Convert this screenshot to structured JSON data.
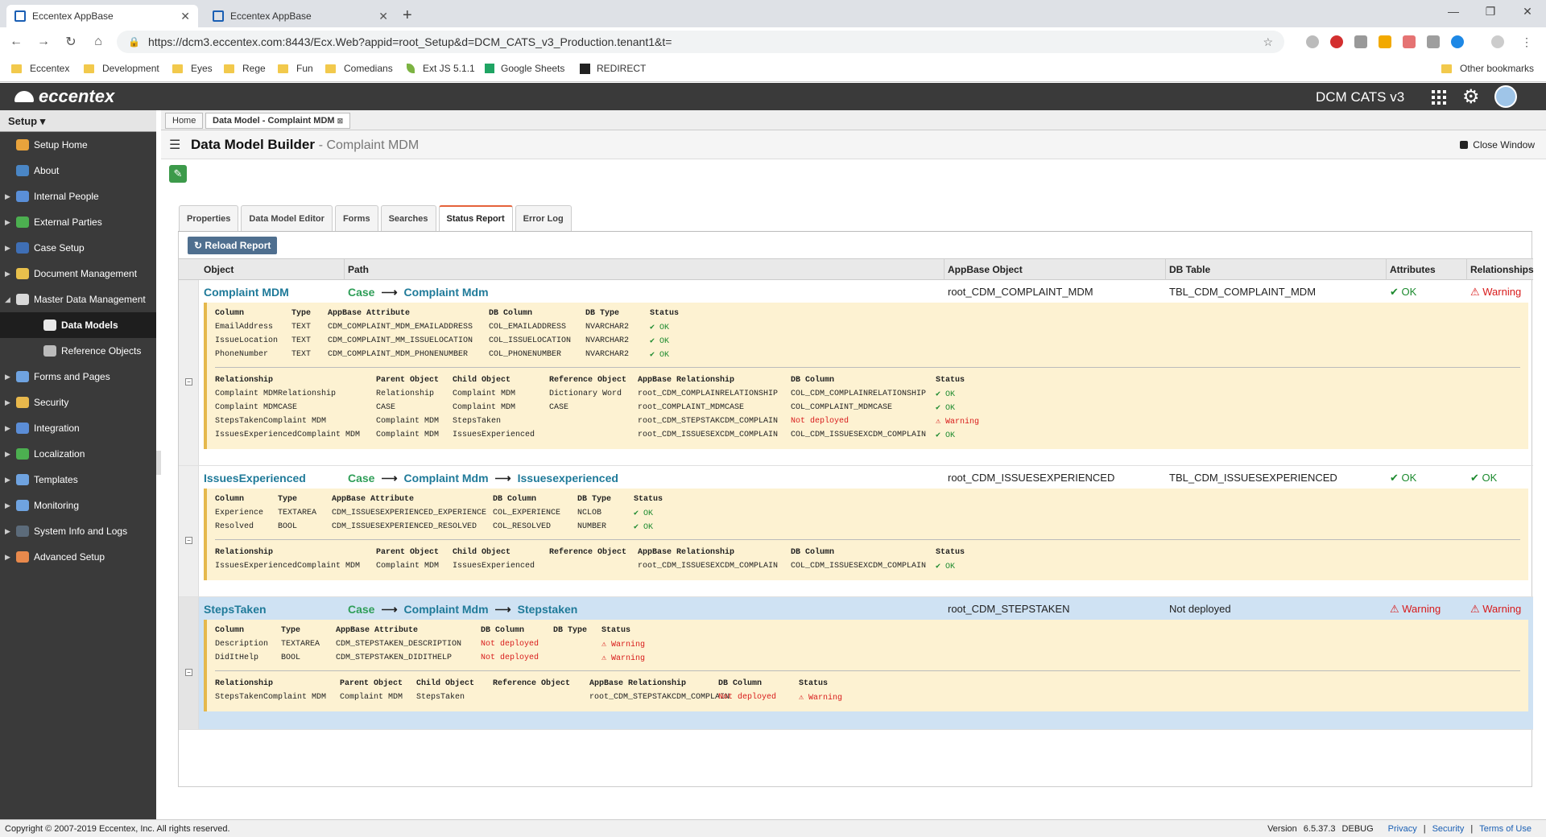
{
  "browser": {
    "tabs": [
      {
        "title": "Eccentex AppBase"
      },
      {
        "title": "Eccentex AppBase"
      }
    ],
    "url": "https://dcm3.eccentex.com:8443/Ecx.Web?appid=root_Setup&d=DCM_CATS_v3_Production.tenant1&t=",
    "bookmarks": [
      "Eccentex",
      "Development",
      "Eyes",
      "Rege",
      "Fun",
      "Comedians",
      "Ext JS 5.1.1",
      "Google Sheets",
      "REDIRECT"
    ],
    "other_bookmarks": "Other bookmarks"
  },
  "app": {
    "logo": "eccentex",
    "tenant": "DCM CATS v3"
  },
  "sidebar": {
    "header": "Setup",
    "items": [
      {
        "label": "Setup Home",
        "color": "#e8a33c"
      },
      {
        "label": "About",
        "color": "#4a86c5"
      },
      {
        "label": "Internal People",
        "color": "#5a8fd8"
      },
      {
        "label": "External Parties",
        "color": "#4caf50"
      },
      {
        "label": "Case Setup",
        "color": "#3f6fb5"
      },
      {
        "label": "Document Management",
        "color": "#e8c04c"
      },
      {
        "label": "Master Data Management",
        "color": "#d9d9d9"
      },
      {
        "label": "Data Models",
        "color": "#eaeaea"
      },
      {
        "label": "Reference Objects",
        "color": "#bbbbbb"
      },
      {
        "label": "Forms and Pages",
        "color": "#6fa3e0"
      },
      {
        "label": "Security",
        "color": "#e8b84c"
      },
      {
        "label": "Integration",
        "color": "#5b8dd6"
      },
      {
        "label": "Localization",
        "color": "#4caf50"
      },
      {
        "label": "Templates",
        "color": "#6fa3e0"
      },
      {
        "label": "Monitoring",
        "color": "#6fa3e0"
      },
      {
        "label": "System Info and Logs",
        "color": "#5c6b7a"
      },
      {
        "label": "Advanced Setup",
        "color": "#e8894c"
      }
    ]
  },
  "breadcrumbs": [
    "Home",
    "Data Model - Complaint MDM"
  ],
  "page": {
    "title": "Data Model Builder",
    "subtitle": "- Complaint MDM",
    "close_label": "Close Window"
  },
  "tabs": [
    "Properties",
    "Data Model Editor",
    "Forms",
    "Searches",
    "Status Report",
    "Error Log"
  ],
  "reload_label": "Reload Report",
  "grid": {
    "headers": [
      "Object",
      "Path",
      "AppBase Object",
      "DB Table",
      "Attributes",
      "Relationships"
    ],
    "groups": [
      {
        "object": "Complaint MDM",
        "path": [
          "Case",
          "Complaint Mdm"
        ],
        "appbase_object": "root_CDM_COMPLAINT_MDM",
        "db_table": "TBL_CDM_COMPLAINT_MDM",
        "attributes": "OK",
        "relationships": "Warning",
        "attr_headers": [
          "Column",
          "Type",
          "AppBase Attribute",
          "DB Column",
          "DB Type",
          "Status"
        ],
        "attr_rows": [
          [
            "EmailAddress",
            "TEXT",
            "CDM_COMPLAINT_MDM_EMAILADDRESS",
            "COL_EMAILADDRESS",
            "NVARCHAR2",
            "OK"
          ],
          [
            "IssueLocation",
            "TEXT",
            "CDM_COMPLAINT_MM_ISSUELOCATION",
            "COL_ISSUELOCATION",
            "NVARCHAR2",
            "OK"
          ],
          [
            "PhoneNumber",
            "TEXT",
            "CDM_COMPLAINT_MDM_PHONENUMBER",
            "COL_PHONENUMBER",
            "NVARCHAR2",
            "OK"
          ]
        ],
        "rel_headers": [
          "Relationship",
          "Parent Object",
          "Child Object",
          "Reference Object",
          "AppBase Relationship",
          "DB Column",
          "Status"
        ],
        "rel_rows": [
          [
            "Complaint MDMRelationship",
            "Relationship",
            "Complaint MDM",
            "Dictionary Word",
            "root_CDM_COMPLAINRELATIONSHIP",
            "COL_CDM_COMPLAINRELATIONSHIP",
            "OK"
          ],
          [
            "Complaint MDMCASE",
            "CASE",
            "Complaint MDM",
            "CASE",
            "root_COMPLAINT_MDMCASE",
            "COL_COMPLAINT_MDMCASE",
            "OK"
          ],
          [
            "StepsTakenComplaint MDM",
            "Complaint MDM",
            "StepsTaken",
            "",
            "root_CDM_STEPSTAKCDM_COMPLAIN",
            "Not deployed",
            "Warning"
          ],
          [
            "IssuesExperiencedComplaint MDM",
            "Complaint MDM",
            "IssuesExperienced",
            "",
            "root_CDM_ISSUESEXCDM_COMPLAIN",
            "COL_CDM_ISSUESEXCDM_COMPLAIN",
            "OK"
          ]
        ]
      },
      {
        "object": "IssuesExperienced",
        "path": [
          "Case",
          "Complaint Mdm",
          "Issuesexperienced"
        ],
        "appbase_object": "root_CDM_ISSUESEXPERIENCED",
        "db_table": "TBL_CDM_ISSUESEXPERIENCED",
        "attributes": "OK",
        "relationships": "OK",
        "attr_headers": [
          "Column",
          "Type",
          "AppBase Attribute",
          "DB Column",
          "DB Type",
          "Status"
        ],
        "attr_rows": [
          [
            "Experience",
            "TEXTAREA",
            "CDM_ISSUESEXPERIENCED_EXPERIENCE",
            "COL_EXPERIENCE",
            "NCLOB",
            "OK"
          ],
          [
            "Resolved",
            "BOOL",
            "CDM_ISSUESEXPERIENCED_RESOLVED",
            "COL_RESOLVED",
            "NUMBER",
            "OK"
          ]
        ],
        "rel_headers": [
          "Relationship",
          "Parent Object",
          "Child Object",
          "Reference Object",
          "AppBase Relationship",
          "DB Column",
          "Status"
        ],
        "rel_rows": [
          [
            "IssuesExperiencedComplaint MDM",
            "Complaint MDM",
            "IssuesExperienced",
            "",
            "root_CDM_ISSUESEXCDM_COMPLAIN",
            "COL_CDM_ISSUESEXCDM_COMPLAIN",
            "OK"
          ]
        ]
      },
      {
        "object": "StepsTaken",
        "path": [
          "Case",
          "Complaint Mdm",
          "Stepstaken"
        ],
        "appbase_object": "root_CDM_STEPSTAKEN",
        "db_table": "Not deployed",
        "attributes": "Warning",
        "relationships": "Warning",
        "attr_headers": [
          "Column",
          "Type",
          "AppBase Attribute",
          "DB Column",
          "DB Type",
          "Status"
        ],
        "attr_rows": [
          [
            "Description",
            "TEXTAREA",
            "CDM_STEPSTAKEN_DESCRIPTION",
            "Not deployed",
            "",
            "Warning"
          ],
          [
            "DidItHelp",
            "BOOL",
            "CDM_STEPSTAKEN_DIDITHELP",
            "Not deployed",
            "",
            "Warning"
          ]
        ],
        "rel_headers": [
          "Relationship",
          "Parent Object",
          "Child Object",
          "Reference Object",
          "AppBase Relationship",
          "DB Column",
          "Status"
        ],
        "rel_rows": [
          [
            "StepsTakenComplaint MDM",
            "Complaint MDM",
            "StepsTaken",
            "",
            "root_CDM_STEPSTAKCDM_COMPLAIN",
            "Not deployed",
            "Warning"
          ]
        ]
      }
    ]
  },
  "footer": {
    "copyright": "Copyright © 2007-2019 Eccentex, Inc. All rights reserved.",
    "version_label": "Version",
    "version": "6.5.37.3",
    "mode": "DEBUG",
    "links": [
      "Privacy",
      "Security",
      "Terms of Use"
    ]
  },
  "colors": {
    "accent": "#e5623a",
    "ok": "#1c8a2e",
    "warning": "#d81b1b",
    "link": "#1f7a99"
  }
}
